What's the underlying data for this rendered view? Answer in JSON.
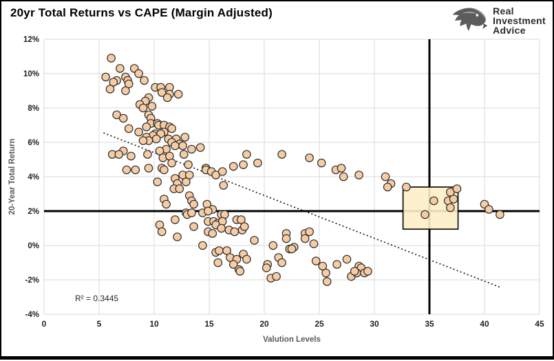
{
  "page": {
    "title": "20yr Total Returns vs CAPE (Margin Adjusted)"
  },
  "logo": {
    "line1": "Real",
    "line2": "Investment",
    "line3": "Advice"
  },
  "chart_data": {
    "type": "scatter",
    "title": "20yr Total Returns vs CAPE (Margin Adjusted)",
    "xlabel": "Valution Levels",
    "ylabel": "20-Year Total Return",
    "xlim": [
      0,
      45
    ],
    "ylim": [
      -4,
      12
    ],
    "x_ticks": [
      0,
      5,
      10,
      15,
      20,
      25,
      30,
      35,
      40,
      45
    ],
    "y_ticks_percent": [
      12,
      10,
      8,
      6,
      4,
      2,
      0,
      -2,
      -4
    ],
    "grid": true,
    "legend": "none",
    "annotation_r2": "R² = 0.3445",
    "r_squared": 0.3445,
    "reference_lines": {
      "horizontal_y": 2,
      "vertical_x": 35
    },
    "trendline": {
      "x1": 5.4,
      "y1": 6.55,
      "x2": 41.5,
      "y2": -2.45,
      "style": "dotted"
    },
    "highlight_box": {
      "x_min": 32.6,
      "x_max": 37.6,
      "y_min": 0.95,
      "y_max": 3.4
    },
    "colors": {
      "point_fill": "#F6CCA5",
      "point_stroke": "#2B2B2B",
      "grid": "#D9D9D9",
      "reference": "#000000",
      "trendline": "#1A1A1A",
      "box_fill": "#FCF0C6",
      "box_stroke": "#000000",
      "axis_title": "#595959",
      "tick_label": "#1F1F1F"
    },
    "points": [
      [
        6.1,
        10.9
      ],
      [
        6.9,
        10.3
      ],
      [
        8.2,
        10.3
      ],
      [
        8.6,
        10.0
      ],
      [
        5.6,
        9.8
      ],
      [
        7.4,
        9.8
      ],
      [
        7.6,
        9.6
      ],
      [
        6.6,
        9.6
      ],
      [
        9.1,
        9.6
      ],
      [
        6.3,
        9.5
      ],
      [
        7.7,
        9.4
      ],
      [
        10.1,
        9.2
      ],
      [
        10.6,
        9.2
      ],
      [
        11.4,
        9.2
      ],
      [
        6.0,
        9.1
      ],
      [
        7.4,
        9.0
      ],
      [
        10.7,
        8.9
      ],
      [
        11.4,
        8.8
      ],
      [
        12.2,
        8.8
      ],
      [
        11.2,
        8.6
      ],
      [
        9.5,
        8.6
      ],
      [
        9.2,
        8.4
      ],
      [
        8.7,
        8.2
      ],
      [
        9.8,
        8.1
      ],
      [
        9.0,
        8.0
      ],
      [
        6.6,
        7.6
      ],
      [
        9.5,
        7.6
      ],
      [
        7.2,
        7.4
      ],
      [
        9.7,
        7.4
      ],
      [
        9.7,
        7.1
      ],
      [
        10.3,
        7.1
      ],
      [
        10.4,
        7.0
      ],
      [
        10.9,
        7.0
      ],
      [
        11.4,
        6.9
      ],
      [
        9.3,
        6.9
      ],
      [
        7.7,
        6.8
      ],
      [
        11.6,
        6.8
      ],
      [
        8.6,
        6.6
      ],
      [
        10.9,
        6.6
      ],
      [
        10.1,
        6.5
      ],
      [
        10.6,
        6.5
      ],
      [
        9.9,
        6.4
      ],
      [
        9.3,
        6.3
      ],
      [
        12.8,
        6.3
      ],
      [
        11.3,
        6.2
      ],
      [
        12.0,
        6.2
      ],
      [
        10.2,
        6.2
      ],
      [
        9.5,
        6.1
      ],
      [
        9.0,
        6.1
      ],
      [
        11.6,
        6.0
      ],
      [
        12.3,
        5.9
      ],
      [
        11.9,
        5.8
      ],
      [
        12.6,
        5.8
      ],
      [
        13.4,
        5.6
      ],
      [
        14.2,
        5.7
      ],
      [
        11.1,
        5.6
      ],
      [
        10.5,
        5.5
      ],
      [
        7.2,
        5.5
      ],
      [
        6.2,
        5.3
      ],
      [
        6.8,
        5.3
      ],
      [
        7.9,
        5.2
      ],
      [
        9.4,
        5.3
      ],
      [
        10.8,
        5.1
      ],
      [
        11.4,
        5.2
      ],
      [
        12.7,
        5.3
      ],
      [
        11.6,
        4.8
      ],
      [
        13.1,
        4.7
      ],
      [
        14.7,
        4.5
      ],
      [
        7.5,
        4.4
      ],
      [
        8.3,
        4.4
      ],
      [
        9.5,
        4.5
      ],
      [
        10.7,
        4.5
      ],
      [
        10.9,
        4.4
      ],
      [
        12.6,
        4.1
      ],
      [
        13.2,
        4.1
      ],
      [
        10.3,
        3.7
      ],
      [
        11.9,
        3.9
      ],
      [
        12.1,
        3.6
      ],
      [
        12.9,
        3.7
      ],
      [
        11.8,
        3.3
      ],
      [
        12.3,
        3.3
      ],
      [
        13.2,
        2.9
      ],
      [
        13.4,
        2.6
      ],
      [
        13.6,
        2.4
      ],
      [
        10.9,
        2.7
      ],
      [
        11.1,
        2.4
      ],
      [
        12.9,
        1.9
      ],
      [
        13.0,
        1.8
      ],
      [
        13.4,
        1.9
      ],
      [
        11.9,
        1.5
      ],
      [
        10.5,
        1.2
      ],
      [
        10.7,
        0.8
      ],
      [
        13.6,
        1.1
      ],
      [
        12.1,
        0.5
      ],
      [
        18.4,
        5.3
      ],
      [
        21.6,
        5.3
      ],
      [
        24.1,
        5.1
      ],
      [
        25.2,
        4.8
      ],
      [
        17.2,
        4.6
      ],
      [
        18.1,
        4.7
      ],
      [
        19.4,
        4.8
      ],
      [
        26.5,
        4.4
      ],
      [
        27.0,
        4.5
      ],
      [
        27.2,
        4.0
      ],
      [
        28.6,
        4.1
      ],
      [
        14.7,
        4.4
      ],
      [
        15.2,
        4.3
      ],
      [
        15.6,
        4.1
      ],
      [
        16.2,
        4.3
      ],
      [
        16.3,
        3.5
      ],
      [
        14.8,
        2.4
      ],
      [
        15.3,
        2.1
      ],
      [
        14.4,
        1.9
      ],
      [
        14.9,
        2.0
      ],
      [
        16.1,
        1.8
      ],
      [
        16.4,
        1.8
      ],
      [
        14.9,
        1.4
      ],
      [
        15.4,
        1.4
      ],
      [
        15.8,
        1.3
      ],
      [
        16.2,
        1.4
      ],
      [
        17.5,
        1.5
      ],
      [
        17.9,
        1.5
      ],
      [
        15.6,
        1.2
      ],
      [
        16.1,
        1.0
      ],
      [
        16.8,
        0.9
      ],
      [
        17.3,
        0.8
      ],
      [
        18.0,
        0.9
      ],
      [
        18.2,
        1.1
      ],
      [
        14.9,
        0.8
      ],
      [
        15.3,
        0.7
      ],
      [
        14.4,
        0.0
      ],
      [
        19.1,
        0.3
      ],
      [
        22.0,
        0.7
      ],
      [
        22.0,
        0.4
      ],
      [
        23.7,
        0.7
      ],
      [
        24.1,
        0.8
      ],
      [
        23.7,
        0.4
      ],
      [
        24.5,
        0.1
      ],
      [
        20.8,
        0.0
      ],
      [
        22.7,
        -0.1
      ],
      [
        22.3,
        -0.2
      ],
      [
        22.5,
        -0.2
      ],
      [
        15.6,
        -0.4
      ],
      [
        15.9,
        -0.3
      ],
      [
        16.6,
        -0.3
      ],
      [
        16.9,
        -0.7
      ],
      [
        17.5,
        -0.8
      ],
      [
        18.1,
        -0.5
      ],
      [
        18.4,
        -0.8
      ],
      [
        15.8,
        -1.0
      ],
      [
        17.2,
        -1.1
      ],
      [
        17.7,
        -1.4
      ],
      [
        17.8,
        -1.5
      ],
      [
        21.3,
        -0.7
      ],
      [
        21.6,
        -1.0
      ],
      [
        20.3,
        -1.1
      ],
      [
        20.2,
        -1.3
      ],
      [
        20.6,
        -1.9
      ],
      [
        21.1,
        -1.8
      ],
      [
        24.7,
        -0.9
      ],
      [
        25.3,
        -1.2
      ],
      [
        26.6,
        -1.1
      ],
      [
        27.5,
        -0.8
      ],
      [
        28.6,
        -1.2
      ],
      [
        28.8,
        -1.3
      ],
      [
        25.6,
        -1.6
      ],
      [
        25.7,
        -2.1
      ],
      [
        27.9,
        -1.8
      ],
      [
        28.4,
        -1.6
      ],
      [
        29.1,
        -1.6
      ],
      [
        28.2,
        -1.5
      ],
      [
        29.4,
        -1.5
      ],
      [
        31.0,
        4.0
      ],
      [
        31.5,
        3.6
      ],
      [
        31.2,
        3.4
      ],
      [
        32.9,
        3.4
      ],
      [
        36.9,
        3.1
      ],
      [
        37.5,
        3.3
      ],
      [
        36.7,
        2.6
      ],
      [
        37.2,
        2.7
      ],
      [
        35.4,
        2.6
      ],
      [
        36.9,
        2.2
      ],
      [
        34.6,
        1.8
      ],
      [
        40.0,
        2.4
      ],
      [
        40.4,
        2.1
      ],
      [
        41.4,
        1.8
      ]
    ]
  }
}
